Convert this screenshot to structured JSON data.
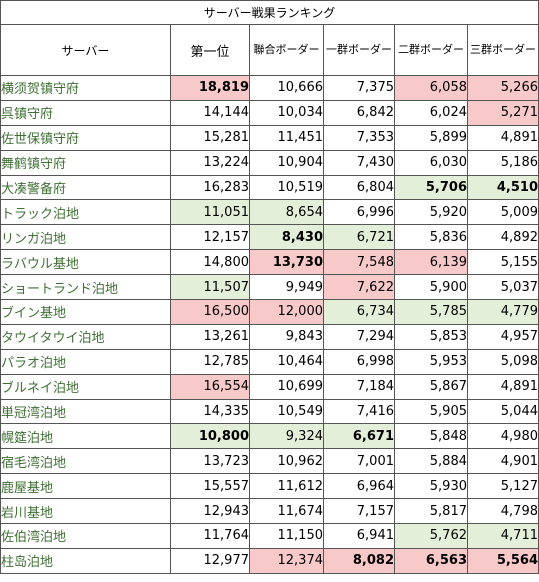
{
  "title": "サーバー戦果ランキング",
  "headers": [
    "サーバー",
    "第一位",
    "聯合ボーダー",
    "一群ボーダー",
    "二群ボーダー",
    "三群ボーダー"
  ],
  "colors": {
    "red_highlight": "#f8c9c9",
    "green_highlight": "#e3efd8",
    "server_text": "#3f6f34"
  },
  "rows": [
    {
      "name": "横须贺镇守府",
      "cells": [
        {
          "v": "18,819",
          "hl": "red",
          "b": true
        },
        {
          "v": "10,666"
        },
        {
          "v": "7,375"
        },
        {
          "v": "6,058",
          "hl": "red"
        },
        {
          "v": "5,266",
          "hl": "red"
        }
      ]
    },
    {
      "name": "呉镇守府",
      "cells": [
        {
          "v": "14,144"
        },
        {
          "v": "10,034"
        },
        {
          "v": "6,842"
        },
        {
          "v": "6,024"
        },
        {
          "v": "5,271",
          "hl": "red"
        }
      ]
    },
    {
      "name": "佐世保镇守府",
      "cells": [
        {
          "v": "15,281"
        },
        {
          "v": "11,451"
        },
        {
          "v": "7,353"
        },
        {
          "v": "5,899"
        },
        {
          "v": "4,891"
        }
      ]
    },
    {
      "name": "舞鹤镇守府",
      "cells": [
        {
          "v": "13,224"
        },
        {
          "v": "10,904"
        },
        {
          "v": "7,430"
        },
        {
          "v": "6,030"
        },
        {
          "v": "5,186"
        }
      ]
    },
    {
      "name": "大凑警备府",
      "cells": [
        {
          "v": "16,283"
        },
        {
          "v": "10,519"
        },
        {
          "v": "6,804"
        },
        {
          "v": "5,706",
          "hl": "green",
          "b": true
        },
        {
          "v": "4,510",
          "hl": "green",
          "b": true
        }
      ]
    },
    {
      "name": "トラック泊地",
      "cells": [
        {
          "v": "11,051",
          "hl": "green"
        },
        {
          "v": "8,654",
          "hl": "green"
        },
        {
          "v": "6,996"
        },
        {
          "v": "5,920"
        },
        {
          "v": "5,009"
        }
      ]
    },
    {
      "name": "リンガ泊地",
      "cells": [
        {
          "v": "12,157"
        },
        {
          "v": "8,430",
          "hl": "green",
          "b": true
        },
        {
          "v": "6,721",
          "hl": "green"
        },
        {
          "v": "5,836"
        },
        {
          "v": "4,892"
        }
      ]
    },
    {
      "name": "ラバウル基地",
      "cells": [
        {
          "v": "14,800"
        },
        {
          "v": "13,730",
          "hl": "red",
          "b": true
        },
        {
          "v": "7,548",
          "hl": "red"
        },
        {
          "v": "6,139",
          "hl": "red"
        },
        {
          "v": "5,155"
        }
      ]
    },
    {
      "name": "ショートランド泊地",
      "cells": [
        {
          "v": "11,507",
          "hl": "green"
        },
        {
          "v": "9,949"
        },
        {
          "v": "7,622",
          "hl": "red"
        },
        {
          "v": "5,900"
        },
        {
          "v": "5,037"
        }
      ]
    },
    {
      "name": "ブイン基地",
      "cells": [
        {
          "v": "16,500",
          "hl": "red"
        },
        {
          "v": "12,000",
          "hl": "red"
        },
        {
          "v": "6,734",
          "hl": "green"
        },
        {
          "v": "5,785",
          "hl": "green"
        },
        {
          "v": "4,779",
          "hl": "green"
        }
      ]
    },
    {
      "name": "タウイタウイ泊地",
      "cells": [
        {
          "v": "13,261"
        },
        {
          "v": "9,843"
        },
        {
          "v": "7,294"
        },
        {
          "v": "5,853"
        },
        {
          "v": "4,957"
        }
      ]
    },
    {
      "name": "パラオ泊地",
      "cells": [
        {
          "v": "12,785"
        },
        {
          "v": "10,464"
        },
        {
          "v": "6,998"
        },
        {
          "v": "5,953"
        },
        {
          "v": "5,098"
        }
      ]
    },
    {
      "name": "ブルネイ泊地",
      "cells": [
        {
          "v": "16,554",
          "hl": "red"
        },
        {
          "v": "10,699"
        },
        {
          "v": "7,184"
        },
        {
          "v": "5,867"
        },
        {
          "v": "4,891"
        }
      ]
    },
    {
      "name": "単冠湾泊地",
      "cells": [
        {
          "v": "14,335"
        },
        {
          "v": "10,549"
        },
        {
          "v": "7,416"
        },
        {
          "v": "5,905"
        },
        {
          "v": "5,044"
        }
      ]
    },
    {
      "name": "幌筵泊地",
      "cells": [
        {
          "v": "10,800",
          "hl": "green",
          "b": true
        },
        {
          "v": "9,324",
          "hl": "green"
        },
        {
          "v": "6,671",
          "hl": "green",
          "b": true
        },
        {
          "v": "5,848"
        },
        {
          "v": "4,980"
        }
      ]
    },
    {
      "name": "宿毛湾泊地",
      "cells": [
        {
          "v": "13,723"
        },
        {
          "v": "10,962"
        },
        {
          "v": "7,001"
        },
        {
          "v": "5,884"
        },
        {
          "v": "4,901"
        }
      ]
    },
    {
      "name": "鹿屋基地",
      "cells": [
        {
          "v": "15,557"
        },
        {
          "v": "11,612"
        },
        {
          "v": "6,964"
        },
        {
          "v": "5,930"
        },
        {
          "v": "5,127"
        }
      ]
    },
    {
      "name": "岩川基地",
      "cells": [
        {
          "v": "12,943"
        },
        {
          "v": "11,674"
        },
        {
          "v": "7,157"
        },
        {
          "v": "5,817"
        },
        {
          "v": "4,798"
        }
      ]
    },
    {
      "name": "佐伯湾泊地",
      "cells": [
        {
          "v": "11,764"
        },
        {
          "v": "11,150"
        },
        {
          "v": "6,941"
        },
        {
          "v": "5,762",
          "hl": "green"
        },
        {
          "v": "4,711",
          "hl": "green"
        }
      ]
    },
    {
      "name": "柱岛泊地",
      "cells": [
        {
          "v": "12,977"
        },
        {
          "v": "12,374",
          "hl": "red"
        },
        {
          "v": "8,082",
          "hl": "red",
          "b": true
        },
        {
          "v": "6,563",
          "hl": "red",
          "b": true
        },
        {
          "v": "5,564",
          "hl": "red",
          "b": true
        }
      ]
    }
  ]
}
